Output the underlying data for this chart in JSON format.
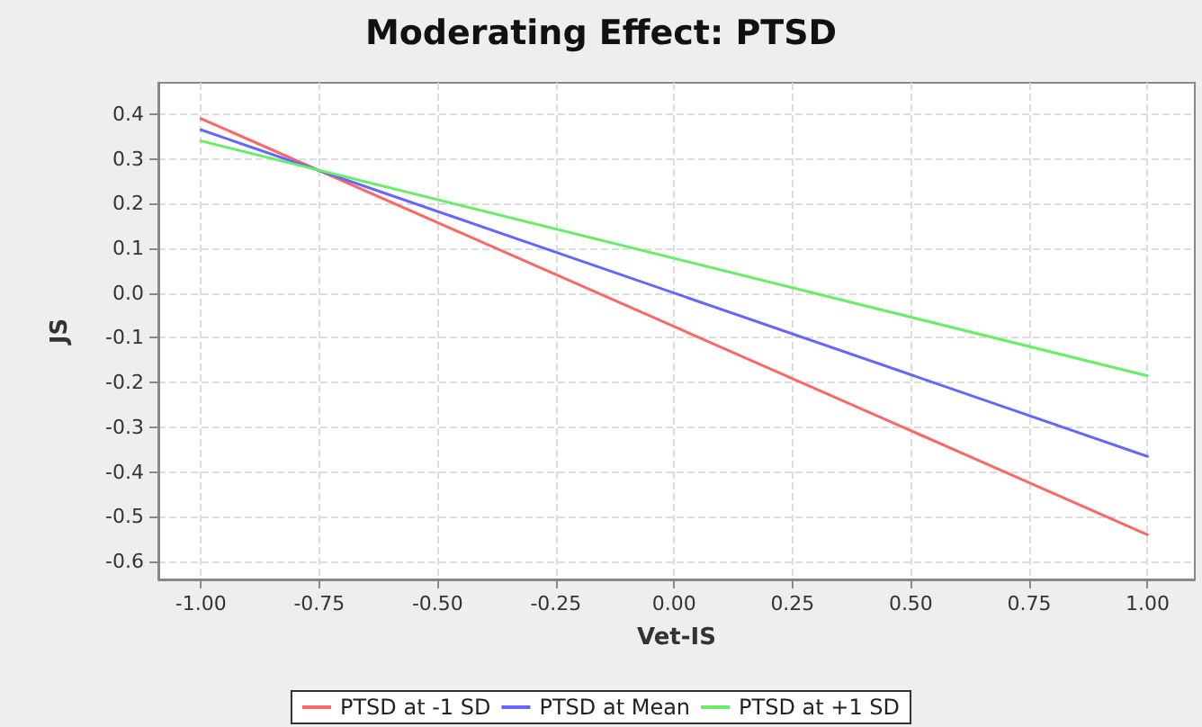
{
  "chart_data": {
    "type": "line",
    "title": "Moderating Effect: PTSD",
    "xlabel": "Vet-IS",
    "ylabel": "JS",
    "x": [
      -1,
      1
    ],
    "series": [
      {
        "name": "PTSD at -1 SD",
        "color": "#ff6666",
        "values": [
          0.39,
          -0.54
        ]
      },
      {
        "name": "PTSD at Mean",
        "color": "#6666ff",
        "values": [
          0.365,
          -0.365
        ]
      },
      {
        "name": "PTSD at +1 SD",
        "color": "#66ee66",
        "values": [
          0.34,
          -0.185
        ]
      }
    ],
    "xlim": [
      -1.09,
      1.1
    ],
    "ylim": [
      -0.64,
      0.47
    ],
    "xticks": [
      {
        "value": -1,
        "label": "-1.00"
      },
      {
        "value": -0.75,
        "label": "-0.75"
      },
      {
        "value": -0.5,
        "label": "-0.50"
      },
      {
        "value": -0.25,
        "label": "-0.25"
      },
      {
        "value": 0,
        "label": "0.00"
      },
      {
        "value": 0.25,
        "label": "0.25"
      },
      {
        "value": 0.5,
        "label": "0.50"
      },
      {
        "value": 0.75,
        "label": "0.75"
      },
      {
        "value": 1,
        "label": "1.00"
      }
    ],
    "yticks": [
      {
        "value": -0.6,
        "label": "-0.6"
      },
      {
        "value": -0.5,
        "label": "-0.5"
      },
      {
        "value": -0.4,
        "label": "-0.4"
      },
      {
        "value": -0.3,
        "label": "-0.3"
      },
      {
        "value": -0.2,
        "label": "-0.2"
      },
      {
        "value": -0.1,
        "label": "-0.1"
      },
      {
        "value": 0,
        "label": "0.0"
      },
      {
        "value": 0.1,
        "label": "0.1"
      },
      {
        "value": 0.2,
        "label": "0.2"
      },
      {
        "value": 0.3,
        "label": "0.3"
      },
      {
        "value": 0.4,
        "label": "0.4"
      }
    ],
    "grid": true,
    "legend": "bottom",
    "marker": "none",
    "line_style": "solid"
  }
}
